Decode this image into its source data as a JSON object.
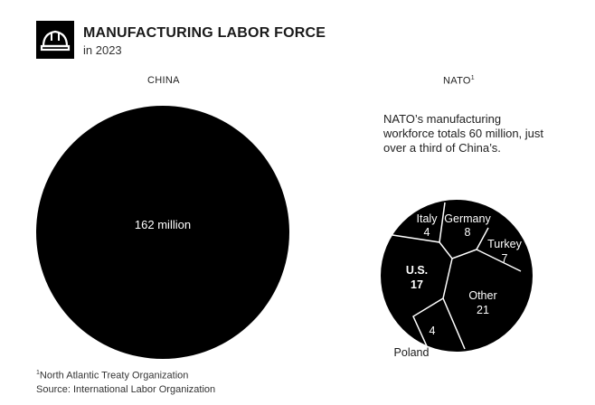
{
  "header": {
    "title": "MANUFACTURING LABOR FORCE",
    "subtitle": "in 2023",
    "icon": "hard-hat-icon"
  },
  "chart_data": {
    "type": "bubble-voronoi",
    "panels": [
      {
        "label": "CHINA",
        "footnote_mark": "",
        "value": 162,
        "value_label": "162 million"
      },
      {
        "label": "NATO",
        "footnote_mark": "1",
        "value": 60
      }
    ],
    "nato_annotation": "NATO’s manufacturing workforce totals 60 million, just over a third of China’s.",
    "nato_breakdown": [
      {
        "name": "Italy",
        "value": 4
      },
      {
        "name": "Germany",
        "value": 8
      },
      {
        "name": "Turkey",
        "value": 7
      },
      {
        "name": "U.S.",
        "value": 17
      },
      {
        "name": "Other",
        "value": 21
      },
      {
        "name": "Poland",
        "value": 4
      }
    ]
  },
  "footnotes": {
    "nato_mark": "1",
    "nato_note": "North Atlantic Treaty Organization",
    "source": "Source: International Labor Organization"
  },
  "colors": {
    "fill": "#000000",
    "divider": "#ffffff",
    "text": "#1a1a1a"
  }
}
